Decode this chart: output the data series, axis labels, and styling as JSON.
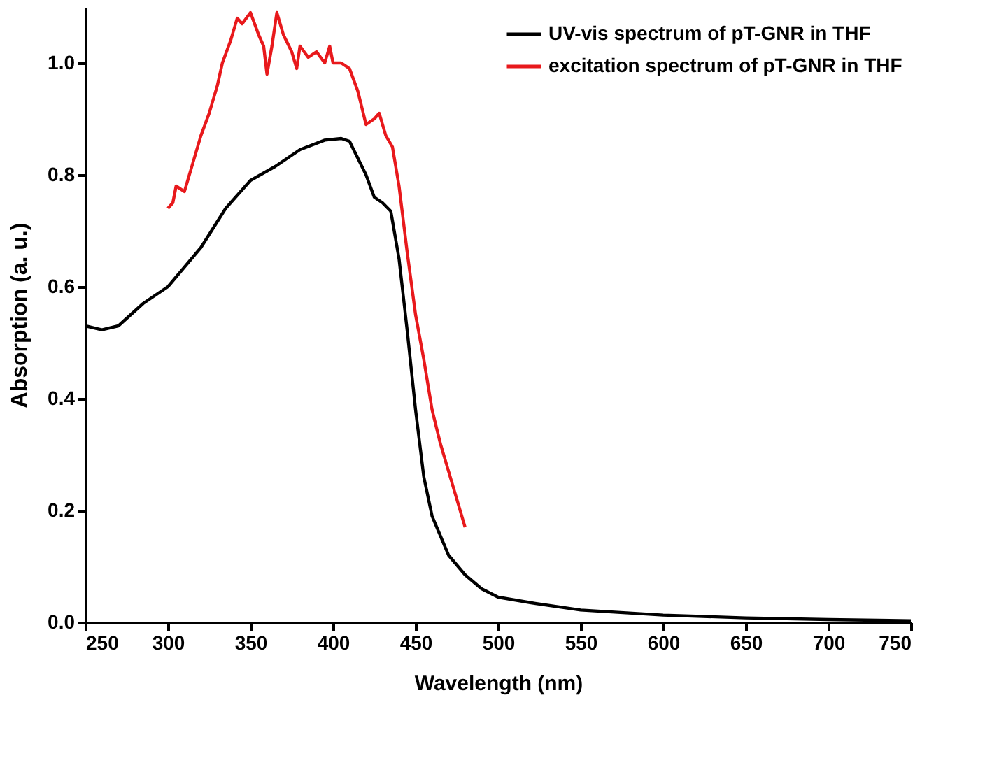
{
  "chart_data": {
    "type": "line",
    "xlabel": "Wavelength (nm)",
    "ylabel": "Absorption (a. u.)",
    "xlim": [
      250,
      750
    ],
    "ylim": [
      0,
      1.1
    ],
    "xticks": [
      250,
      300,
      350,
      400,
      450,
      500,
      550,
      600,
      650,
      700,
      750
    ],
    "yticks": [
      {
        "value": 0,
        "label": "0.0"
      },
      {
        "value": 0.2,
        "label": "0.2"
      },
      {
        "value": 0.4,
        "label": "0.4"
      },
      {
        "value": 0.6,
        "label": "0.6"
      },
      {
        "value": 0.8,
        "label": "0.8"
      },
      {
        "value": 1.0,
        "label": "1.0"
      }
    ],
    "grid": false,
    "legend": "top right",
    "marker": "none",
    "line_style": "solid",
    "series": [
      {
        "name": "UV-vis spectrum of pT-GNR in THF",
        "color": "#000000",
        "x": [
          250,
          260,
          270,
          285,
          300,
          320,
          335,
          350,
          365,
          380,
          395,
          405,
          410,
          420,
          425,
          430,
          435,
          440,
          445,
          450,
          455,
          460,
          470,
          480,
          490,
          500,
          520,
          550,
          600,
          650,
          700,
          750
        ],
        "values": [
          0.53,
          0.523,
          0.53,
          0.57,
          0.6,
          0.67,
          0.74,
          0.79,
          0.815,
          0.845,
          0.862,
          0.865,
          0.86,
          0.8,
          0.76,
          0.75,
          0.735,
          0.65,
          0.52,
          0.38,
          0.26,
          0.19,
          0.12,
          0.085,
          0.06,
          0.045,
          0.035,
          0.022,
          0.013,
          0.008,
          0.005,
          0.003
        ]
      },
      {
        "name": "excitation spectrum of pT-GNR in THF",
        "color": "#e8191c",
        "x": [
          300,
          303,
          305,
          310,
          315,
          320,
          325,
          330,
          333,
          338,
          342,
          345,
          350,
          355,
          358,
          360,
          363,
          366,
          370,
          375,
          378,
          380,
          385,
          390,
          395,
          398,
          400,
          405,
          410,
          415,
          420,
          425,
          428,
          432,
          436,
          440,
          445,
          450,
          455,
          460,
          465,
          470,
          475,
          480
        ],
        "values": [
          0.74,
          0.75,
          0.78,
          0.77,
          0.82,
          0.87,
          0.91,
          0.96,
          1.0,
          1.04,
          1.08,
          1.07,
          1.09,
          1.05,
          1.03,
          0.98,
          1.03,
          1.09,
          1.05,
          1.02,
          0.99,
          1.03,
          1.01,
          1.02,
          1.0,
          1.03,
          1.0,
          1.0,
          0.99,
          0.95,
          0.89,
          0.9,
          0.91,
          0.87,
          0.85,
          0.78,
          0.66,
          0.55,
          0.47,
          0.38,
          0.32,
          0.27,
          0.22,
          0.17
        ]
      }
    ]
  }
}
